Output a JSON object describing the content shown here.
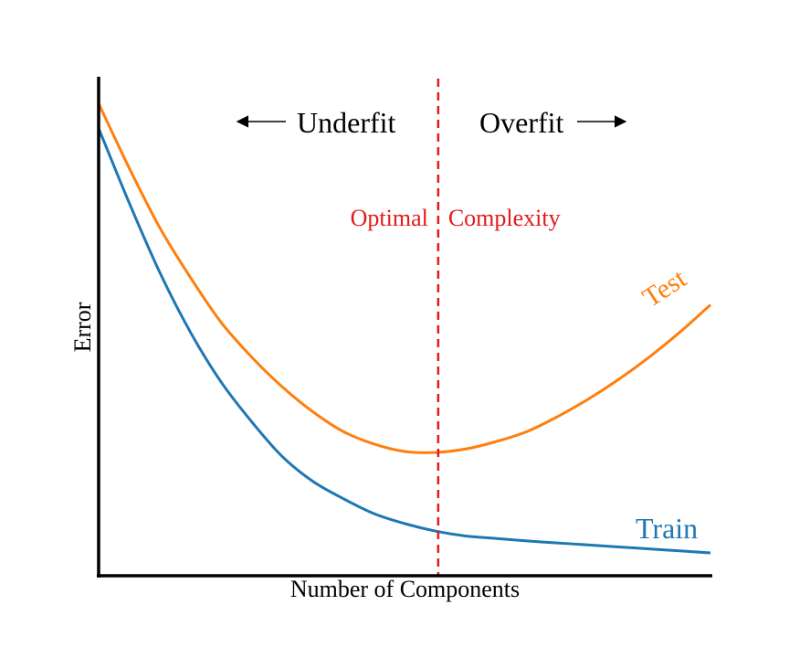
{
  "chart_data": {
    "type": "line",
    "title": "",
    "xlabel": "Number of Components",
    "ylabel": "Error",
    "xlim": [
      0,
      1
    ],
    "ylim": [
      0,
      1
    ],
    "grid": false,
    "legend": "none",
    "x": [
      0,
      0.05,
      0.1,
      0.15,
      0.2,
      0.25,
      0.3,
      0.35,
      0.4,
      0.45,
      0.5,
      0.55,
      0.6,
      0.65,
      0.7,
      0.75,
      0.8,
      0.85,
      0.9,
      0.95,
      1
    ],
    "series": [
      {
        "name": "Test",
        "color": "#ff7f0e",
        "values": [
          0.95,
          0.82,
          0.7,
          0.6,
          0.51,
          0.44,
          0.38,
          0.33,
          0.29,
          0.265,
          0.25,
          0.248,
          0.255,
          0.27,
          0.29,
          0.32,
          0.355,
          0.395,
          0.44,
          0.49,
          0.545
        ]
      },
      {
        "name": "Train",
        "color": "#1f77b4",
        "values": [
          0.9,
          0.75,
          0.61,
          0.49,
          0.39,
          0.31,
          0.24,
          0.19,
          0.155,
          0.125,
          0.105,
          0.09,
          0.08,
          0.075,
          0.07,
          0.066,
          0.062,
          0.058,
          0.054,
          0.05,
          0.046
        ]
      }
    ],
    "optimal_x": 0.555,
    "optimal_line_color": "#e31a1c",
    "annotations": {
      "underfit": "Underfit",
      "overfit": "Overfit",
      "optimal_left": "Optimal",
      "optimal_right": "Complexity",
      "test_label": "Test",
      "train_label": "Train"
    }
  }
}
